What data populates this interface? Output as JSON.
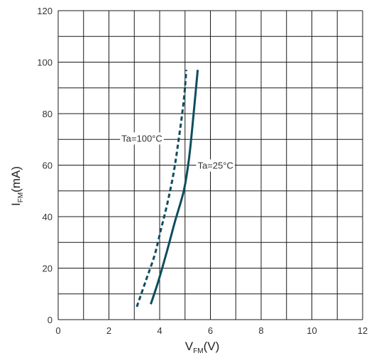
{
  "chart_data": {
    "type": "line",
    "xlabel": {
      "main": "V",
      "sub": "FM",
      "unit": "(V)"
    },
    "ylabel": {
      "main": "I",
      "sub": "FM",
      "unit": "(mA)"
    },
    "xlim": [
      0,
      12
    ],
    "ylim": [
      0,
      120
    ],
    "xticks": [
      "0",
      "2",
      "4",
      "6",
      "8",
      "10",
      "12"
    ],
    "yticks": [
      "0",
      "20",
      "40",
      "60",
      "80",
      "100",
      "120"
    ],
    "grid": true,
    "line_color": "#0d4d5e",
    "series": [
      {
        "name": "Ta=100°C",
        "style": "dashed",
        "x": [
          3.1,
          3.45,
          3.8,
          4.05,
          4.3,
          4.55,
          4.75,
          4.95,
          5.05
        ],
        "y": [
          5,
          15,
          25,
          35,
          45,
          57,
          70,
          85,
          97
        ]
      },
      {
        "name": "Ta=25°C",
        "style": "solid",
        "x": [
          3.65,
          3.95,
          4.3,
          4.6,
          4.95,
          5.15,
          5.3,
          5.5
        ],
        "y": [
          6,
          15,
          27,
          38,
          50,
          62,
          76,
          97
        ]
      }
    ]
  }
}
